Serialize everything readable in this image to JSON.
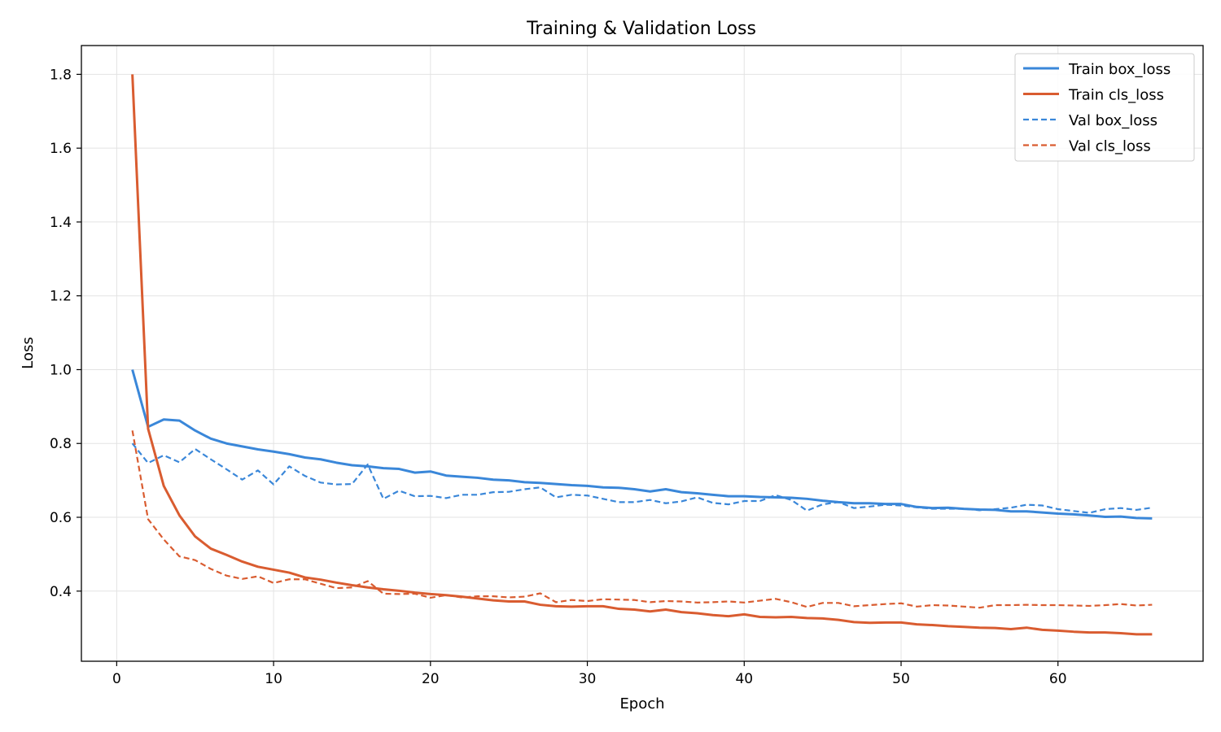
{
  "chart_data": {
    "type": "line",
    "title": "Training & Validation Loss",
    "xlabel": "Epoch",
    "ylabel": "Loss",
    "xlim": [
      -2.25,
      69.25
    ],
    "ylim": [
      0.21,
      1.878
    ],
    "xticks": [
      0,
      10,
      20,
      30,
      40,
      50,
      60
    ],
    "yticks": [
      0.4,
      0.6,
      0.8,
      1.0,
      1.2,
      1.4,
      1.6,
      1.8
    ],
    "grid": true,
    "legend_position": "top-right",
    "x": [
      1,
      2,
      3,
      4,
      5,
      6,
      7,
      8,
      9,
      10,
      11,
      12,
      13,
      14,
      15,
      16,
      17,
      18,
      19,
      20,
      21,
      22,
      23,
      24,
      25,
      26,
      27,
      28,
      29,
      30,
      31,
      32,
      33,
      34,
      35,
      36,
      37,
      38,
      39,
      40,
      41,
      42,
      43,
      44,
      45,
      46,
      47,
      48,
      49,
      50,
      51,
      52,
      53,
      54,
      55,
      56,
      57,
      58,
      59,
      60,
      61,
      62,
      63,
      64,
      65,
      66
    ],
    "series": [
      {
        "name": "Train box_loss",
        "color": "#3a87d9",
        "style": "solid",
        "values": [
          1.0,
          0.845,
          0.865,
          0.862,
          0.835,
          0.813,
          0.8,
          0.792,
          0.784,
          0.778,
          0.771,
          0.762,
          0.757,
          0.748,
          0.741,
          0.738,
          0.733,
          0.731,
          0.721,
          0.724,
          0.713,
          0.71,
          0.707,
          0.702,
          0.7,
          0.695,
          0.693,
          0.69,
          0.687,
          0.685,
          0.681,
          0.68,
          0.676,
          0.67,
          0.676,
          0.668,
          0.665,
          0.661,
          0.657,
          0.657,
          0.655,
          0.654,
          0.653,
          0.65,
          0.645,
          0.641,
          0.638,
          0.638,
          0.636,
          0.636,
          0.628,
          0.625,
          0.626,
          0.623,
          0.621,
          0.62,
          0.616,
          0.616,
          0.613,
          0.61,
          0.608,
          0.605,
          0.601,
          0.602,
          0.598,
          0.597
        ]
      },
      {
        "name": "Train cls_loss",
        "color": "#d95c30",
        "style": "solid",
        "values": [
          1.8,
          0.84,
          0.685,
          0.605,
          0.548,
          0.515,
          0.498,
          0.48,
          0.466,
          0.458,
          0.45,
          0.437,
          0.431,
          0.423,
          0.416,
          0.41,
          0.405,
          0.401,
          0.396,
          0.392,
          0.389,
          0.385,
          0.38,
          0.375,
          0.372,
          0.372,
          0.363,
          0.359,
          0.358,
          0.359,
          0.359,
          0.352,
          0.35,
          0.345,
          0.35,
          0.343,
          0.34,
          0.335,
          0.332,
          0.337,
          0.33,
          0.329,
          0.33,
          0.327,
          0.326,
          0.322,
          0.316,
          0.314,
          0.315,
          0.315,
          0.31,
          0.308,
          0.305,
          0.303,
          0.301,
          0.3,
          0.297,
          0.301,
          0.295,
          0.293,
          0.29,
          0.288,
          0.288,
          0.286,
          0.283,
          0.283
        ]
      },
      {
        "name": "Val box_loss",
        "color": "#3a87d9",
        "style": "dashed",
        "values": [
          0.8,
          0.747,
          0.768,
          0.749,
          0.785,
          0.757,
          0.73,
          0.702,
          0.727,
          0.689,
          0.738,
          0.712,
          0.694,
          0.689,
          0.69,
          0.743,
          0.65,
          0.672,
          0.657,
          0.658,
          0.652,
          0.661,
          0.661,
          0.668,
          0.669,
          0.676,
          0.681,
          0.654,
          0.661,
          0.659,
          0.65,
          0.641,
          0.641,
          0.647,
          0.638,
          0.643,
          0.654,
          0.639,
          0.635,
          0.644,
          0.644,
          0.66,
          0.647,
          0.618,
          0.635,
          0.641,
          0.625,
          0.629,
          0.634,
          0.632,
          0.627,
          0.623,
          0.623,
          0.623,
          0.619,
          0.622,
          0.626,
          0.634,
          0.632,
          0.622,
          0.617,
          0.612,
          0.622,
          0.625,
          0.62,
          0.626
        ]
      },
      {
        "name": "Val cls_loss",
        "color": "#d95c30",
        "style": "dashed",
        "values": [
          0.835,
          0.595,
          0.54,
          0.494,
          0.484,
          0.46,
          0.442,
          0.433,
          0.44,
          0.422,
          0.432,
          0.432,
          0.42,
          0.408,
          0.41,
          0.427,
          0.393,
          0.392,
          0.393,
          0.382,
          0.389,
          0.383,
          0.386,
          0.386,
          0.383,
          0.385,
          0.394,
          0.37,
          0.376,
          0.373,
          0.378,
          0.377,
          0.376,
          0.37,
          0.373,
          0.372,
          0.369,
          0.37,
          0.372,
          0.369,
          0.374,
          0.379,
          0.37,
          0.357,
          0.368,
          0.368,
          0.359,
          0.362,
          0.365,
          0.367,
          0.358,
          0.362,
          0.361,
          0.358,
          0.355,
          0.362,
          0.362,
          0.363,
          0.362,
          0.362,
          0.361,
          0.36,
          0.362,
          0.365,
          0.361,
          0.363
        ]
      }
    ]
  }
}
